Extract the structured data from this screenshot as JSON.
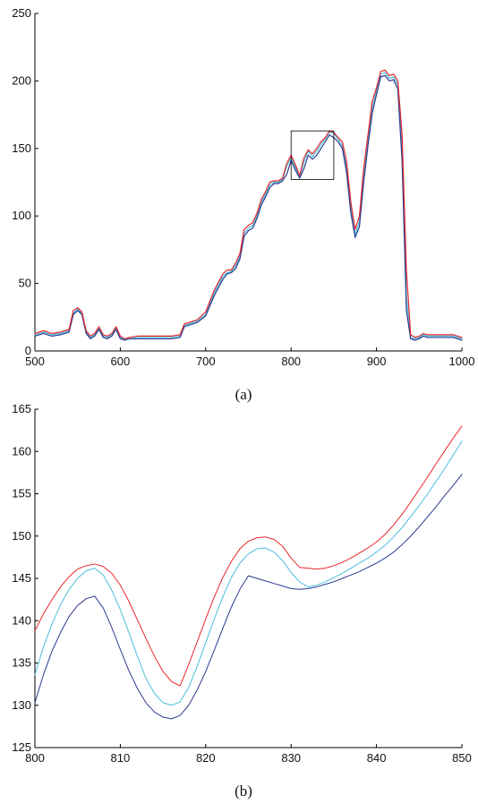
{
  "chart_data": [
    {
      "panel": "(a)",
      "type": "line",
      "xlim": [
        500,
        1000
      ],
      "ylim": [
        0,
        250
      ],
      "xticks": [
        500,
        600,
        700,
        800,
        900,
        1000
      ],
      "yticks": [
        0,
        50,
        100,
        150,
        200,
        250
      ],
      "grid": false,
      "zoom_box": {
        "x": [
          800,
          850
        ],
        "y": [
          127,
          163
        ]
      },
      "series": [
        {
          "color": "#e8262a",
          "x": [
            500,
            510,
            520,
            530,
            540,
            545,
            550,
            555,
            560,
            565,
            570,
            575,
            580,
            585,
            590,
            595,
            600,
            605,
            610,
            620,
            630,
            640,
            650,
            660,
            670,
            675,
            680,
            690,
            700,
            710,
            720,
            725,
            730,
            735,
            740,
            745,
            750,
            755,
            760,
            765,
            770,
            775,
            780,
            785,
            790,
            795,
            800,
            805,
            810,
            815,
            820,
            825,
            830,
            835,
            840,
            845,
            850,
            855,
            860,
            865,
            870,
            875,
            880,
            885,
            890,
            895,
            900,
            905,
            910,
            915,
            920,
            925,
            930,
            935,
            940,
            945,
            950,
            955,
            960,
            970,
            980,
            990,
            1000
          ],
          "y": [
            13,
            15,
            13,
            14,
            16,
            30,
            32,
            29,
            15,
            11,
            13,
            18,
            12,
            11,
            13,
            18,
            11,
            9,
            10,
            11,
            11,
            11,
            11,
            11,
            12,
            20,
            21,
            23,
            29,
            45,
            57,
            60,
            60,
            65,
            72,
            90,
            93,
            95,
            102,
            112,
            118,
            125,
            126,
            126,
            128,
            139,
            145,
            138,
            130,
            143,
            149,
            146,
            150,
            155,
            158,
            163,
            162,
            158,
            155,
            140,
            110,
            90,
            100,
            135,
            160,
            185,
            195,
            207,
            208,
            204,
            205,
            200,
            160,
            60,
            12,
            10,
            11,
            13,
            12,
            12,
            12,
            12,
            10
          ]
        },
        {
          "color": "#4bbfdc",
          "x": [
            500,
            510,
            520,
            530,
            540,
            545,
            550,
            555,
            560,
            565,
            570,
            575,
            580,
            585,
            590,
            595,
            600,
            605,
            610,
            620,
            630,
            640,
            650,
            660,
            670,
            675,
            680,
            690,
            700,
            710,
            720,
            725,
            730,
            735,
            740,
            745,
            750,
            755,
            760,
            765,
            770,
            775,
            780,
            785,
            790,
            795,
            800,
            805,
            810,
            815,
            820,
            825,
            830,
            835,
            840,
            845,
            850,
            855,
            860,
            865,
            870,
            875,
            880,
            885,
            890,
            895,
            900,
            905,
            910,
            915,
            920,
            925,
            930,
            935,
            940,
            945,
            950,
            955,
            960,
            970,
            980,
            990,
            1000
          ],
          "y": [
            12,
            14,
            12,
            13,
            15,
            28,
            31,
            28,
            14,
            10,
            12,
            17,
            11,
            10,
            12,
            17,
            10,
            8,
            9,
            10,
            10,
            10,
            10,
            10,
            11,
            19,
            20,
            22,
            27,
            43,
            55,
            58,
            59,
            63,
            70,
            87,
            91,
            93,
            100,
            110,
            116,
            123,
            125,
            125,
            127,
            137,
            143,
            136,
            129,
            140,
            148,
            144,
            148,
            153,
            157,
            162,
            161,
            157,
            152,
            136,
            106,
            86,
            96,
            130,
            156,
            180,
            193,
            205,
            206,
            202,
            203,
            197,
            150,
            40,
            10,
            9,
            10,
            12,
            11,
            11,
            11,
            11,
            9
          ]
        },
        {
          "color": "#2b3a8f",
          "x": [
            500,
            510,
            520,
            530,
            540,
            545,
            550,
            555,
            560,
            565,
            570,
            575,
            580,
            585,
            590,
            595,
            600,
            605,
            610,
            620,
            630,
            640,
            650,
            660,
            670,
            675,
            680,
            690,
            700,
            710,
            720,
            725,
            730,
            735,
            740,
            745,
            750,
            755,
            760,
            765,
            770,
            775,
            780,
            785,
            790,
            795,
            800,
            805,
            810,
            815,
            820,
            825,
            830,
            835,
            840,
            845,
            850,
            855,
            860,
            865,
            870,
            875,
            880,
            885,
            890,
            895,
            900,
            905,
            910,
            915,
            920,
            925,
            930,
            935,
            940,
            945,
            950,
            955,
            960,
            970,
            980,
            990,
            1000
          ],
          "y": [
            11,
            13,
            11,
            12,
            14,
            27,
            30,
            27,
            13,
            9,
            11,
            16,
            10,
            9,
            11,
            16,
            9,
            8,
            9,
            9,
            9,
            9,
            9,
            9,
            10,
            18,
            19,
            21,
            26,
            41,
            53,
            57,
            58,
            61,
            68,
            85,
            89,
            91,
            98,
            108,
            114,
            121,
            124,
            124,
            126,
            131,
            141,
            134,
            128,
            135,
            145,
            142,
            145,
            150,
            155,
            160,
            158,
            155,
            150,
            132,
            102,
            84,
            92,
            125,
            152,
            176,
            190,
            203,
            204,
            200,
            201,
            194,
            140,
            30,
            9,
            8,
            9,
            11,
            10,
            10,
            10,
            10,
            8
          ]
        }
      ]
    },
    {
      "panel": "(b)",
      "type": "line",
      "xlim": [
        800,
        850
      ],
      "ylim": [
        125,
        165
      ],
      "xticks": [
        800,
        810,
        820,
        830,
        840,
        850
      ],
      "yticks": [
        125,
        130,
        135,
        140,
        145,
        150,
        155,
        160,
        165
      ],
      "grid": false,
      "series": [
        {
          "color": "#e8262a",
          "x": [
            800,
            801,
            802,
            803,
            804,
            805,
            806,
            807,
            808,
            809,
            810,
            811,
            812,
            813,
            814,
            815,
            816,
            817,
            818,
            819,
            820,
            821,
            822,
            823,
            824,
            825,
            826,
            827,
            828,
            829,
            830,
            831,
            832,
            833,
            834,
            835,
            836,
            837,
            838,
            839,
            840,
            841,
            842,
            843,
            844,
            845,
            846,
            847,
            848,
            849,
            850
          ],
          "y": [
            138.8,
            140.8,
            142.5,
            144.0,
            145.2,
            146.1,
            146.5,
            146.7,
            146.4,
            145.6,
            144.2,
            142.3,
            140.1,
            137.9,
            135.8,
            134.0,
            132.8,
            132.3,
            134.8,
            137.5,
            140.2,
            142.8,
            145.1,
            147.0,
            148.5,
            149.4,
            149.8,
            149.9,
            149.6,
            148.8,
            147.4,
            146.3,
            146.2,
            146.1,
            146.2,
            146.5,
            146.9,
            147.4,
            148.0,
            148.6,
            149.3,
            150.2,
            151.3,
            152.6,
            154.0,
            155.5,
            157.0,
            158.6,
            160.1,
            161.6,
            163.0
          ]
        },
        {
          "color": "#4bbfdc",
          "x": [
            800,
            801,
            802,
            803,
            804,
            805,
            806,
            807,
            808,
            809,
            810,
            811,
            812,
            813,
            814,
            815,
            816,
            817,
            818,
            819,
            820,
            821,
            822,
            823,
            824,
            825,
            826,
            827,
            828,
            829,
            830,
            831,
            832,
            833,
            834,
            835,
            836,
            837,
            838,
            839,
            840,
            841,
            842,
            843,
            844,
            845,
            846,
            847,
            848,
            849,
            850
          ],
          "y": [
            133.6,
            136.9,
            139.6,
            141.9,
            143.7,
            145.0,
            145.9,
            146.2,
            145.4,
            143.6,
            141.3,
            138.6,
            135.8,
            133.2,
            131.4,
            130.3,
            130.0,
            130.4,
            132.1,
            134.6,
            137.4,
            140.2,
            142.8,
            145.1,
            146.8,
            147.9,
            148.5,
            148.6,
            148.1,
            147.1,
            145.7,
            144.6,
            144.0,
            144.2,
            144.6,
            145.1,
            145.6,
            146.2,
            146.8,
            147.4,
            148.1,
            148.9,
            149.9,
            151.0,
            152.3,
            153.6,
            155.0,
            156.5,
            158.0,
            159.6,
            161.2
          ]
        },
        {
          "color": "#2b3a8f",
          "x": [
            800,
            801,
            802,
            803,
            804,
            805,
            806,
            807,
            808,
            809,
            810,
            811,
            812,
            813,
            814,
            815,
            816,
            817,
            818,
            819,
            820,
            821,
            822,
            823,
            824,
            825,
            826,
            827,
            828,
            829,
            830,
            831,
            832,
            833,
            834,
            835,
            836,
            837,
            838,
            839,
            840,
            841,
            842,
            843,
            844,
            845,
            846,
            847,
            848,
            849,
            850
          ],
          "y": [
            130.3,
            133.6,
            136.4,
            138.6,
            140.5,
            141.8,
            142.6,
            142.9,
            141.5,
            139.2,
            136.6,
            134.1,
            132.0,
            130.3,
            129.2,
            128.6,
            128.4,
            128.8,
            130.0,
            131.8,
            134.0,
            136.5,
            139.1,
            141.6,
            143.7,
            145.3,
            145.0,
            144.7,
            144.4,
            144.1,
            143.8,
            143.7,
            143.8,
            144.0,
            144.3,
            144.6,
            145.0,
            145.4,
            145.8,
            146.3,
            146.8,
            147.4,
            148.1,
            149.0,
            150.0,
            151.1,
            152.3,
            153.5,
            154.8,
            156.0,
            157.3
          ]
        }
      ]
    }
  ],
  "captions": [
    "(a)",
    "(b)"
  ]
}
